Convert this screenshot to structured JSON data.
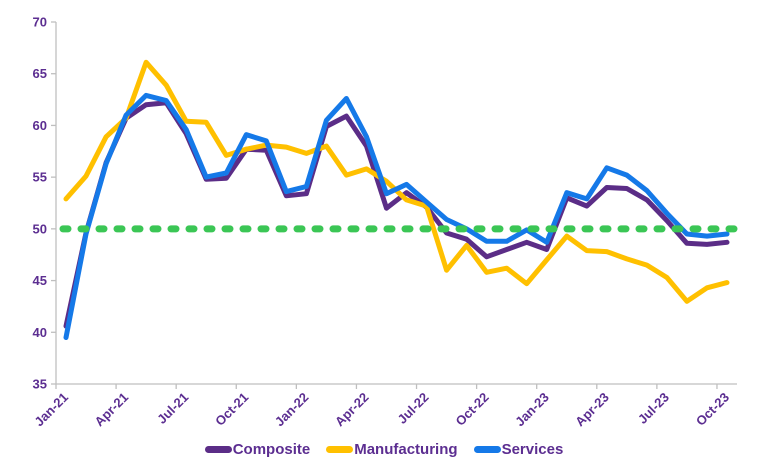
{
  "chart_data": {
    "type": "line",
    "x": [
      "Jan-21",
      "Feb-21",
      "Mar-21",
      "Apr-21",
      "May-21",
      "Jun-21",
      "Jul-21",
      "Aug-21",
      "Sep-21",
      "Oct-21",
      "Nov-21",
      "Dec-21",
      "Jan-22",
      "Feb-22",
      "Mar-22",
      "Apr-22",
      "May-22",
      "Jun-22",
      "Jul-22",
      "Aug-22",
      "Sep-22",
      "Oct-22",
      "Nov-22",
      "Dec-22",
      "Jan-23",
      "Feb-23",
      "Mar-23",
      "Apr-23",
      "May-23",
      "Jun-23",
      "Jul-23",
      "Aug-23",
      "Sep-23",
      "Oct-23"
    ],
    "x_tick_labels": [
      "Jan-21",
      "Apr-21",
      "Jul-21",
      "Oct-21",
      "Jan-22",
      "Apr-22",
      "Jul-22",
      "Oct-22",
      "Jan-23",
      "Apr-23",
      "Jul-23",
      "Oct-23"
    ],
    "ylim": [
      35,
      70
    ],
    "yticks": [
      35,
      40,
      45,
      50,
      55,
      60,
      65,
      70
    ],
    "grid": false,
    "legend_position": "bottom",
    "axis_color": "#BFBFBF",
    "label_color": "#5C2E91",
    "reference_line": {
      "value": 50,
      "color": "#3BC655",
      "style": "dashed"
    },
    "series": [
      {
        "name": "Composite",
        "color": "#5B2D87",
        "values": [
          40.6,
          49.6,
          56.4,
          60.7,
          62.0,
          62.2,
          59.2,
          54.8,
          54.9,
          57.7,
          57.6,
          53.2,
          53.4,
          59.9,
          60.9,
          58.0,
          52.0,
          53.5,
          52.1,
          49.6,
          49.0,
          47.3,
          48.0,
          48.7,
          48.0,
          53.0,
          52.2,
          54.0,
          53.9,
          52.8,
          50.8,
          48.6,
          48.5,
          48.7
        ]
      },
      {
        "name": "Manufacturing",
        "color": "#FFC000",
        "values": [
          52.9,
          55.1,
          58.9,
          60.7,
          66.1,
          63.9,
          60.4,
          60.3,
          57.1,
          57.7,
          58.1,
          57.9,
          57.3,
          58.0,
          55.2,
          55.8,
          54.6,
          52.8,
          52.2,
          46.0,
          48.4,
          45.8,
          46.2,
          44.7,
          47.0,
          49.3,
          47.9,
          47.8,
          47.1,
          46.5,
          45.3,
          43.0,
          44.3,
          44.8
        ]
      },
      {
        "name": "Services",
        "color": "#1579E8",
        "values": [
          39.5,
          49.5,
          56.3,
          61.0,
          62.9,
          62.4,
          59.6,
          55.0,
          55.4,
          59.1,
          58.5,
          53.6,
          54.1,
          60.5,
          62.6,
          58.9,
          53.4,
          54.3,
          52.6,
          50.9,
          50.0,
          48.8,
          48.8,
          49.9,
          48.7,
          53.5,
          52.9,
          55.9,
          55.2,
          53.7,
          51.5,
          49.5,
          49.3,
          49.5
        ]
      }
    ]
  }
}
